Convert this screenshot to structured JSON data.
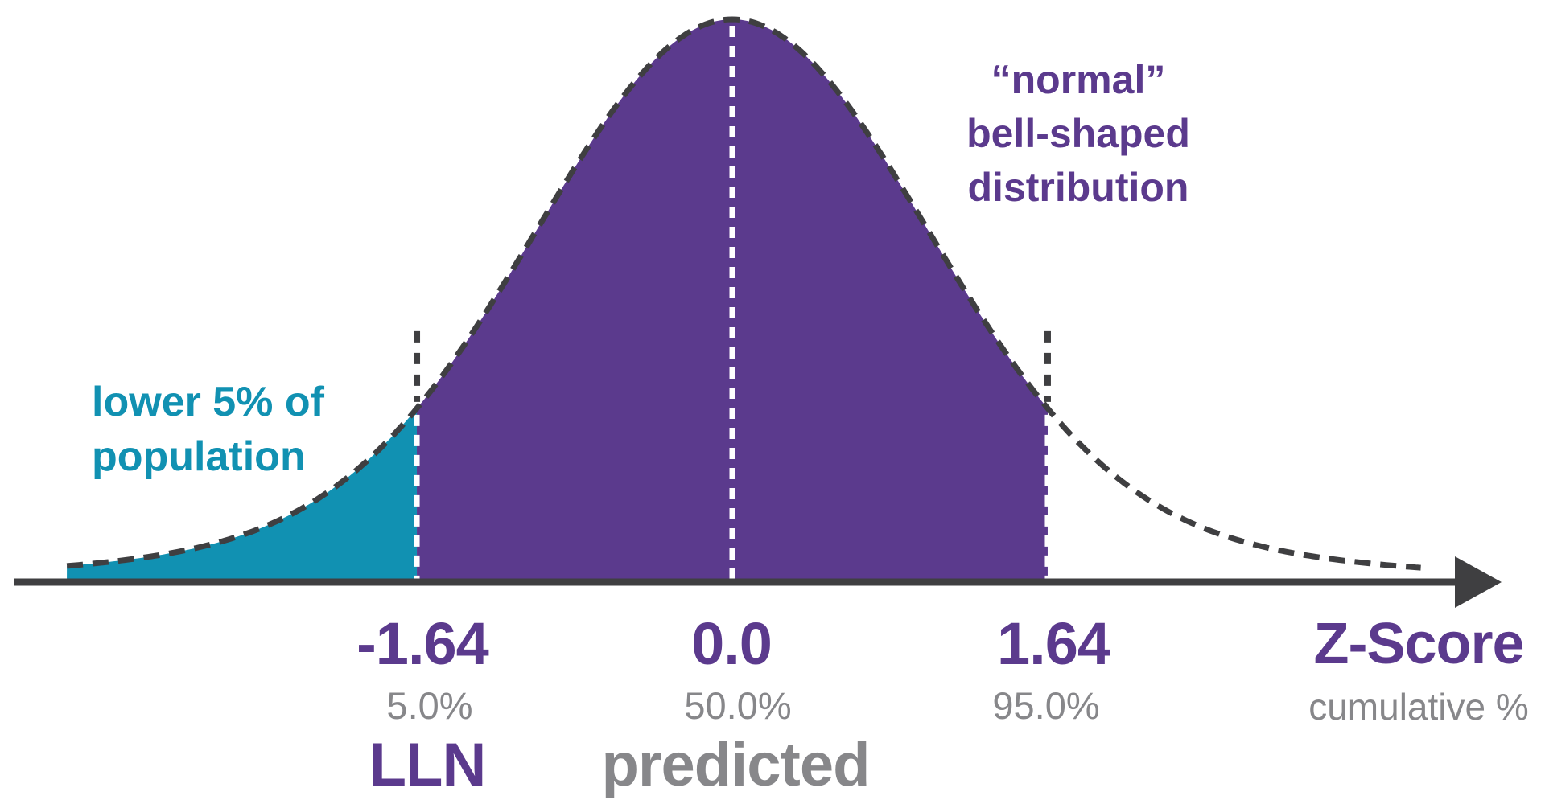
{
  "annotations": {
    "right": {
      "line1": "“normal”",
      "line2": "bell-shaped",
      "line3": "distribution"
    },
    "left": {
      "line1": "lower 5% of",
      "line2": "population"
    }
  },
  "axis": {
    "name_label": "Z-Score",
    "unit_label": "cumulative %",
    "ticks": [
      {
        "z": "-1.64",
        "cumulative": "5.0%",
        "caption": "LLN"
      },
      {
        "z": "0.0",
        "cumulative": "50.0%",
        "caption": "predicted"
      },
      {
        "z": "1.64",
        "cumulative": "95.0%",
        "caption": ""
      }
    ]
  },
  "chart_data": {
    "type": "area",
    "title": "“normal” bell-shaped distribution",
    "xlabel": "Z-Score",
    "x2label": "cumulative %",
    "curve": "standard normal density, y = exp(-z^2/2), stylized hand-drawn outline",
    "z_range": [
      -3.46,
      3.58
    ],
    "axis_arrow": "right",
    "grid": false,
    "markers": [
      {
        "z": -1.64,
        "cumulative_pct": 5.0,
        "label": "LLN"
      },
      {
        "z": 0.0,
        "cumulative_pct": 50.0,
        "label": "predicted"
      },
      {
        "z": 1.64,
        "cumulative_pct": 95.0,
        "label": null
      }
    ],
    "regions": [
      {
        "name": "lower 5% of population",
        "z_from": -3.46,
        "z_to": -1.64,
        "cumulative_pct": 5.0,
        "color": "#1191b2"
      },
      {
        "name": "central 90%",
        "z_from": -1.64,
        "z_to": 1.64,
        "cumulative_pct": 90.0,
        "color": "#5b3a8d"
      }
    ]
  },
  "colors": {
    "purple": "#5b3a8d",
    "teal": "#1191b2",
    "gray": "#87878a",
    "dark": "#3f3f41",
    "white": "#ffffff"
  }
}
